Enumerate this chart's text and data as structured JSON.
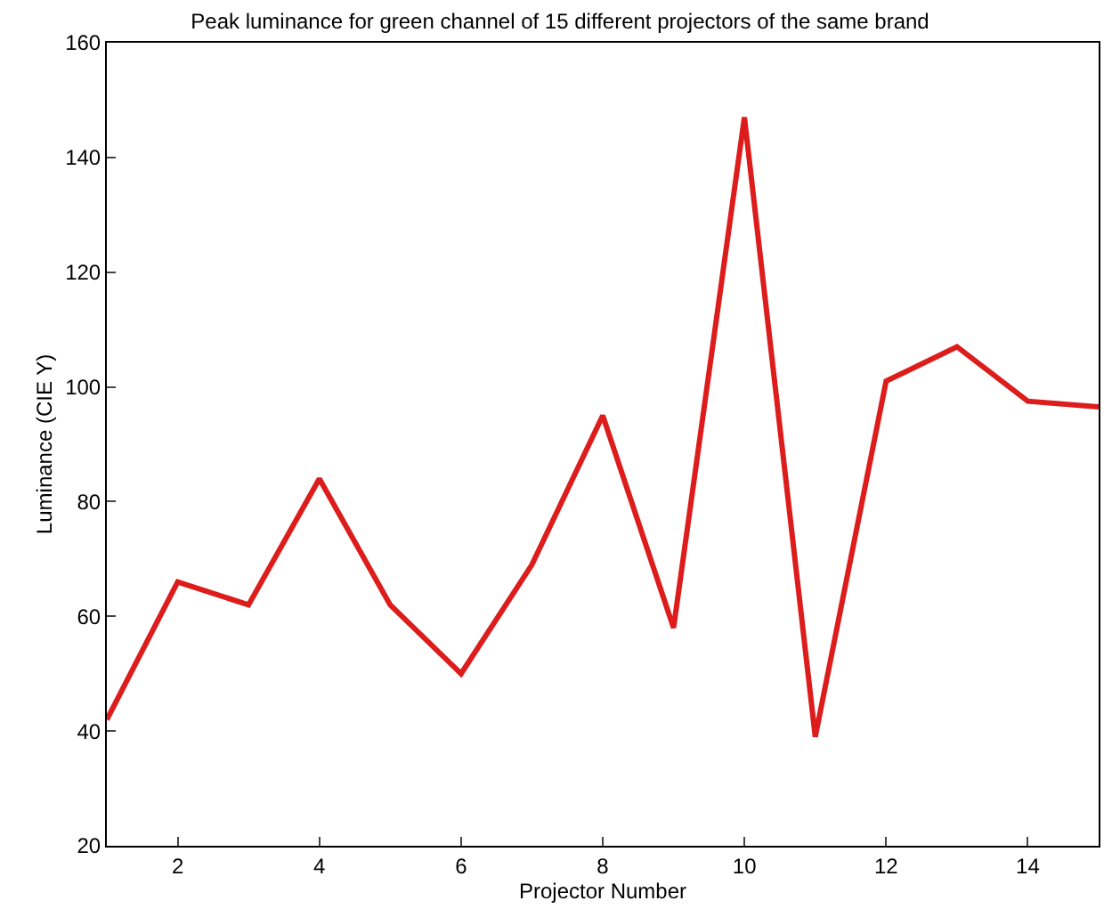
{
  "chart_data": {
    "type": "line",
    "title": "Peak luminance for green channel of 15 different projectors of the same brand",
    "xlabel": "Projector Number",
    "ylabel": "Luminance (CIE Y)",
    "x": [
      1,
      2,
      3,
      4,
      5,
      6,
      7,
      8,
      9,
      10,
      11,
      12,
      13,
      14,
      15
    ],
    "series": [
      {
        "color": "#dd1c1c",
        "values": [
          42,
          66,
          62,
          84,
          62,
          50,
          69,
          95,
          58,
          147,
          39,
          101,
          107,
          97.5,
          96.5
        ]
      }
    ],
    "xlim": [
      1,
      15
    ],
    "xticks": [
      2,
      4,
      6,
      8,
      10,
      12,
      14
    ],
    "ylim": [
      20,
      160
    ],
    "yticks": [
      20,
      40,
      60,
      80,
      100,
      120,
      140,
      160
    ],
    "marker": "none",
    "line_style": "solid"
  }
}
